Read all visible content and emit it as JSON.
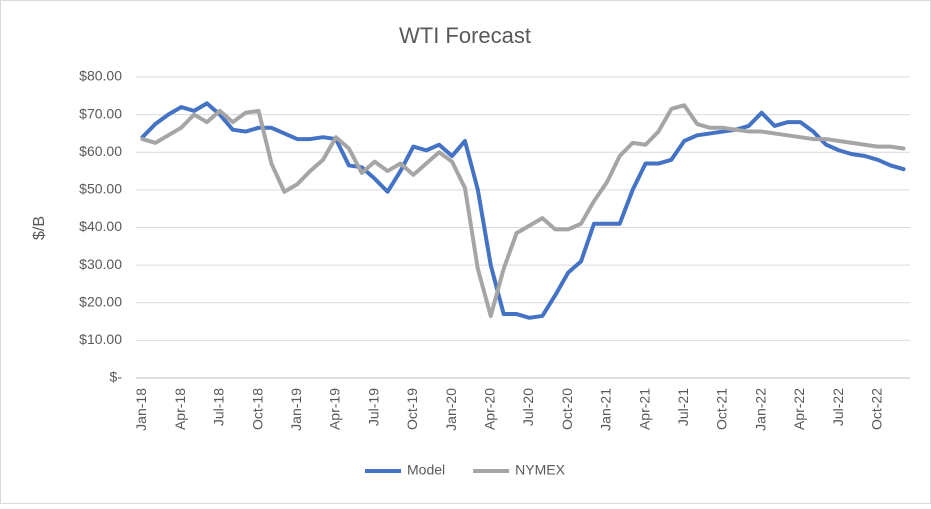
{
  "chart_data": {
    "type": "line",
    "title": "WTI Forecast",
    "y_label": "$/B",
    "categories": [
      "Jan-18",
      null,
      null,
      "Apr-18",
      null,
      null,
      "Jul-18",
      null,
      null,
      "Oct-18",
      null,
      null,
      "Jan-19",
      null,
      null,
      "Apr-19",
      null,
      null,
      "Jul-19",
      null,
      null,
      "Oct-19",
      null,
      null,
      "Jan-20",
      null,
      null,
      "Apr-20",
      null,
      null,
      "Jul-20",
      null,
      null,
      "Oct-20",
      null,
      null,
      "Jan-21",
      null,
      null,
      "Apr-21",
      null,
      null,
      "Jul-21",
      null,
      null,
      "Oct-21",
      null,
      null,
      "Jan-22",
      null,
      null,
      "Apr-22",
      null,
      null,
      "Jul-22",
      null,
      null,
      "Oct-22",
      null,
      null
    ],
    "series": [
      {
        "name": "Model",
        "color": "#4472c4",
        "values": [
          64,
          67.5,
          70,
          72,
          71,
          73,
          70,
          66,
          65.5,
          66.5,
          66.5,
          65,
          63.5,
          63.5,
          64,
          63.5,
          56.5,
          56,
          53,
          49.5,
          55,
          61.5,
          60.5,
          62,
          59,
          63,
          50,
          30,
          17,
          17,
          16,
          16.5,
          22,
          28,
          31,
          41,
          41,
          41,
          50,
          57,
          57,
          58,
          63,
          64.5,
          65,
          65.5,
          66,
          67,
          70.5,
          67,
          68,
          68,
          65.5,
          62,
          60.5,
          59.5,
          59,
          58,
          56.5,
          55.5
        ]
      },
      {
        "name": "NYMEX",
        "color": "#a5a5a5",
        "values": [
          63.5,
          62.5,
          64.5,
          66.5,
          70,
          68,
          71,
          68,
          70.5,
          71,
          57,
          49.5,
          51.5,
          55,
          58,
          64,
          61,
          54.5,
          57.5,
          55,
          57,
          54,
          57,
          60,
          57.5,
          50.5,
          29,
          16.5,
          29,
          38.5,
          40.5,
          42.5,
          39.5,
          39.5,
          41,
          47,
          52,
          59,
          62.5,
          62,
          65.5,
          71.5,
          72.5,
          67.5,
          66.5,
          66.5,
          66,
          65.5,
          65.5,
          65,
          64.5,
          64,
          63.5,
          63.5,
          63,
          62.5,
          62,
          61.5,
          61.5,
          61
        ]
      }
    ],
    "ylim": [
      0,
      80
    ],
    "yticks": [
      {
        "value": 0,
        "label": "$-"
      },
      {
        "value": 10,
        "label": "$10.00"
      },
      {
        "value": 20,
        "label": "$20.00"
      },
      {
        "value": 30,
        "label": "$30.00"
      },
      {
        "value": 40,
        "label": "$40.00"
      },
      {
        "value": 50,
        "label": "$50.00"
      },
      {
        "value": 60,
        "label": "$60.00"
      },
      {
        "value": 70,
        "label": "$70.00"
      },
      {
        "value": 80,
        "label": "$80.00"
      }
    ],
    "grid": true,
    "legend": "bottom"
  }
}
